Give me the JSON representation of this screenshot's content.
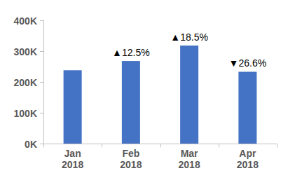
{
  "chart_data": {
    "type": "bar",
    "categories": [
      "Jan 2018",
      "Feb 2018",
      "Mar 2018",
      "Apr 2018"
    ],
    "values": [
      238000,
      268000,
      318000,
      233000
    ],
    "color": "#4472c4",
    "annotations": [
      null,
      "▲12.5%",
      "▲18.5%",
      "▼26.6%"
    ],
    "ylim": [
      0,
      400000
    ],
    "yticks": [
      {
        "value": 0,
        "label": "0K"
      },
      {
        "value": 100000,
        "label": "100K"
      },
      {
        "value": 200000,
        "label": "200K"
      },
      {
        "value": 300000,
        "label": "300K"
      },
      {
        "value": 400000,
        "label": "400K"
      }
    ],
    "grid": false
  }
}
